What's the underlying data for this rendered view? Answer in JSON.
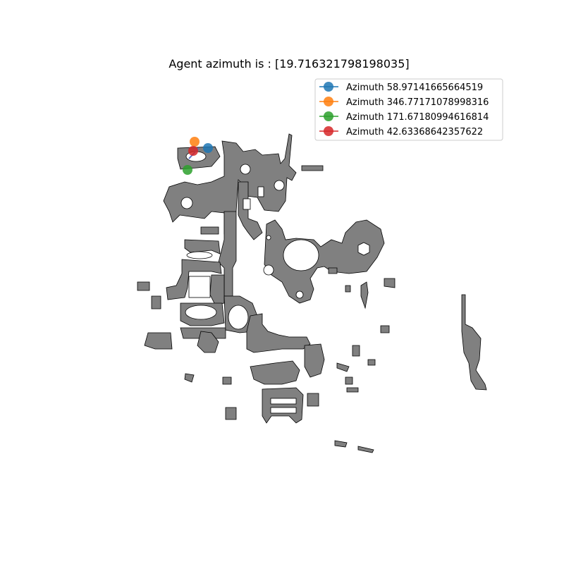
{
  "chart_data": {
    "type": "scatter",
    "title": "Agent azimuth is : [19.716321798198035]",
    "xlabel": "",
    "ylabel": "",
    "grid": false,
    "axes_visible": false,
    "legend_placement": "top-right",
    "map_fill_color": "#808080",
    "map_edge_color": "#000000",
    "series": [
      {
        "name": "Azimuth 58.97141665664519",
        "color": "#1f77b4"
      },
      {
        "name": "Azimuth 346.77171078998316",
        "color": "#ff7f0e"
      },
      {
        "name": "Azimuth 171.67180994616814",
        "color": "#2ca02c"
      },
      {
        "name": "Azimuth 42.63368642357622",
        "color": "#d62728"
      }
    ]
  }
}
